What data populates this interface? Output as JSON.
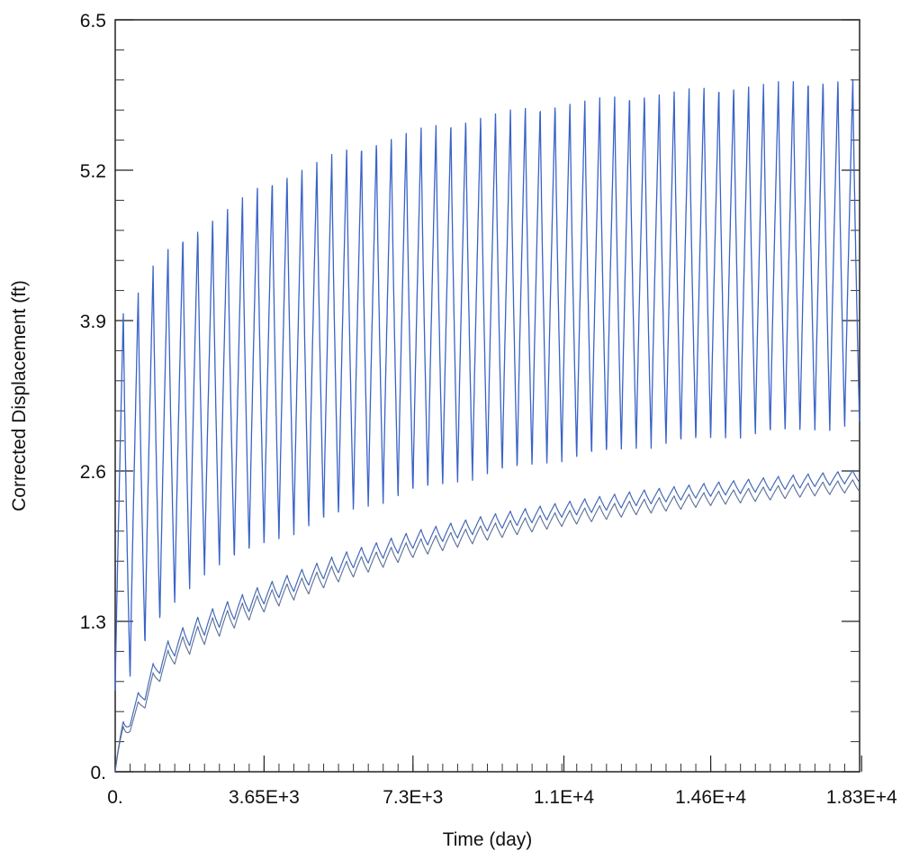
{
  "chart_data": {
    "type": "line",
    "title": "",
    "xlabel": "Time (day)",
    "ylabel": "Corrected Displacement (ft)",
    "xlim": [
      0,
      18250
    ],
    "ylim": [
      0,
      6.5
    ],
    "x_ticks": [
      {
        "value": 0,
        "label": "0."
      },
      {
        "value": 3650,
        "label": "3.65E+3"
      },
      {
        "value": 7300,
        "label": "7.3E+3"
      },
      {
        "value": 11000,
        "label": "1.1E+4"
      },
      {
        "value": 14600,
        "label": "1.46E+4"
      },
      {
        "value": 18300,
        "label": "1.83E+4"
      }
    ],
    "x_minor_step": 365,
    "y_ticks": [
      {
        "value": 0,
        "label": "0."
      },
      {
        "value": 1.3,
        "label": "1.3"
      },
      {
        "value": 2.6,
        "label": "2.6"
      },
      {
        "value": 3.9,
        "label": "3.9"
      },
      {
        "value": 5.2,
        "label": "5.2"
      },
      {
        "value": 6.5,
        "label": "6.5"
      }
    ],
    "y_minor_step": 0.26,
    "grid": false,
    "cycle_period_days": 365,
    "series": [
      {
        "color": "#3a63c8",
        "width": 1.3,
        "peak_x": [
          365,
          730,
          1095,
          1460,
          2190,
          3650,
          5475,
          7300,
          9125,
          10950,
          12775,
          14600,
          16425,
          18250
        ],
        "peak_y": [
          4.0,
          4.3,
          4.45,
          4.6,
          4.75,
          5.1,
          5.37,
          5.56,
          5.7,
          5.8,
          5.87,
          5.93,
          5.98,
          6.01
        ],
        "trough_x": [
          250,
          600,
          1000,
          1500,
          2190,
          3650,
          5475,
          7300,
          9125,
          10950,
          12775,
          14600,
          16425,
          18250
        ],
        "trough_y": [
          0.7,
          1.0,
          1.25,
          1.45,
          1.7,
          1.95,
          2.2,
          2.4,
          2.55,
          2.68,
          2.78,
          2.86,
          2.92,
          2.97
        ]
      },
      {
        "color": "#4469b8",
        "width": 1.2,
        "peak_x": [
          0,
          365,
          730,
          1095,
          1460,
          2190,
          3650,
          5475,
          7300,
          9125,
          10950,
          12775,
          14600,
          16425,
          18250
        ],
        "peak_y": [
          0.3,
          0.55,
          0.8,
          1.05,
          1.2,
          1.38,
          1.62,
          1.88,
          2.08,
          2.22,
          2.33,
          2.43,
          2.5,
          2.56,
          2.61
        ],
        "trough_x": [
          0,
          365,
          730,
          1095,
          1460,
          2190,
          3650,
          5475,
          7300,
          9125,
          10950,
          12775,
          14600,
          16425,
          18250
        ],
        "trough_y": [
          0.0,
          0.4,
          0.62,
          0.85,
          1.0,
          1.18,
          1.45,
          1.72,
          1.93,
          2.08,
          2.2,
          2.3,
          2.38,
          2.44,
          2.5
        ]
      },
      {
        "color": "#5a6e96",
        "width": 1.1,
        "peak_x": [
          0,
          365,
          730,
          1095,
          1460,
          2190,
          3650,
          5475,
          7300,
          9125,
          10950,
          12775,
          14600,
          16425,
          18250
        ],
        "peak_y": [
          0.3,
          0.47,
          0.72,
          0.97,
          1.12,
          1.3,
          1.55,
          1.8,
          2.0,
          2.14,
          2.25,
          2.35,
          2.42,
          2.48,
          2.53
        ],
        "trough_x": [
          0,
          365,
          730,
          1095,
          1460,
          2190,
          3650,
          5475,
          7300,
          9125,
          10950,
          12775,
          14600,
          16425,
          18250
        ],
        "trough_y": [
          0.0,
          0.35,
          0.55,
          0.78,
          0.93,
          1.1,
          1.38,
          1.64,
          1.85,
          2.0,
          2.12,
          2.22,
          2.3,
          2.36,
          2.42
        ]
      }
    ]
  }
}
